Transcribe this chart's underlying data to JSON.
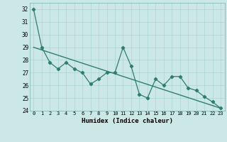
{
  "title": "",
  "xlabel": "Humidex (Indice chaleur)",
  "xlim": [
    -0.5,
    23.5
  ],
  "ylim": [
    24,
    32.5
  ],
  "yticks": [
    24,
    25,
    26,
    27,
    28,
    29,
    30,
    31,
    32
  ],
  "xticks": [
    0,
    1,
    2,
    3,
    4,
    5,
    6,
    7,
    8,
    9,
    10,
    11,
    12,
    13,
    14,
    15,
    16,
    17,
    18,
    19,
    20,
    21,
    22,
    23
  ],
  "line1_x": [
    0,
    1,
    2,
    3,
    4,
    5,
    6,
    7,
    8,
    9,
    10,
    11,
    12,
    13,
    14,
    15,
    16,
    17,
    18,
    19,
    20,
    21,
    22,
    23
  ],
  "line1_y": [
    32,
    29,
    27.8,
    27.3,
    27.8,
    27.3,
    27,
    26.1,
    26.5,
    27,
    27,
    29,
    27.5,
    25.3,
    25,
    26.5,
    26,
    26.7,
    26.7,
    25.8,
    25.6,
    25.1,
    24.7,
    24.2
  ],
  "trend_x": [
    0,
    23
  ],
  "trend_y": [
    29.0,
    24.2
  ],
  "line_color": "#2e7d6e",
  "bg_color": "#cce8e6",
  "grid_color": "#aad4d0"
}
